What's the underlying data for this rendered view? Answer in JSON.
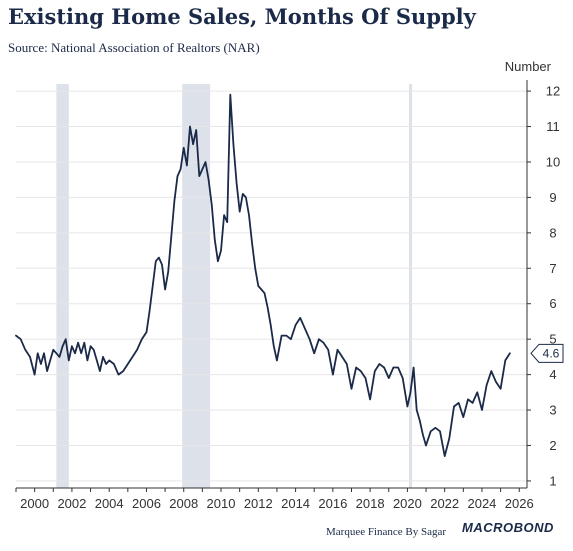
{
  "header": {
    "title": "Existing Home Sales, Months Of Supply",
    "subtitle": "Source: National Association of Realtors (NAR)"
  },
  "footer": {
    "credit": "Marquee Finance By Sagar",
    "brand": "MACROBOND"
  },
  "colors": {
    "line": "#1b2a48",
    "recession": "#dde1ea",
    "grid": "#e6e6e6",
    "axis": "#333333"
  },
  "chart_data": {
    "type": "line",
    "title": "Existing Home Sales, Months Of Supply",
    "subtitle": "Source: National Association of Realtors (NAR)",
    "ylabel": "Number",
    "y_axis_side": "right",
    "xlim": [
      "1999-01",
      "2026-06"
    ],
    "ylim": [
      0.8,
      12.2
    ],
    "x_ticks": [
      "2000",
      "2002",
      "2004",
      "2006",
      "2008",
      "2010",
      "2012",
      "2014",
      "2016",
      "2018",
      "2020",
      "2022",
      "2024",
      "2026"
    ],
    "y_ticks": [
      1,
      2,
      3,
      4,
      5,
      6,
      7,
      8,
      9,
      10,
      11,
      12
    ],
    "grid": "horizontal",
    "last_value_label": "4.6",
    "recession_bands": [
      {
        "start": "2001-03",
        "end": "2001-11"
      },
      {
        "start": "2007-12",
        "end": "2009-06"
      },
      {
        "start": "2020-02",
        "end": "2020-04"
      }
    ],
    "series": [
      {
        "x": [
          "1999-01",
          "1999-04",
          "1999-07",
          "1999-10",
          "2000-01",
          "2000-03",
          "2000-05",
          "2000-07",
          "2000-09",
          "2000-11",
          "2001-01",
          "2001-03",
          "2001-05",
          "2001-07",
          "2001-09",
          "2001-11",
          "2002-01",
          "2002-03",
          "2002-05",
          "2002-07",
          "2002-09",
          "2002-11",
          "2003-01",
          "2003-03",
          "2003-05",
          "2003-07",
          "2003-09",
          "2003-11",
          "2004-01",
          "2004-04",
          "2004-07",
          "2004-10",
          "2005-01",
          "2005-04",
          "2005-07",
          "2005-10",
          "2006-01",
          "2006-03",
          "2006-05",
          "2006-07",
          "2006-09",
          "2006-11",
          "2007-01",
          "2007-03",
          "2007-05",
          "2007-07",
          "2007-09",
          "2007-11",
          "2008-01",
          "2008-03",
          "2008-05",
          "2008-07",
          "2008-09",
          "2008-11",
          "2009-01",
          "2009-03",
          "2009-05",
          "2009-07",
          "2009-09",
          "2009-11",
          "2010-01",
          "2010-03",
          "2010-05",
          "2010-07",
          "2010-09",
          "2010-11",
          "2011-01",
          "2011-03",
          "2011-05",
          "2011-07",
          "2011-09",
          "2011-11",
          "2012-01",
          "2012-03",
          "2012-05",
          "2012-07",
          "2012-09",
          "2012-11",
          "2013-01",
          "2013-04",
          "2013-07",
          "2013-10",
          "2014-01",
          "2014-04",
          "2014-07",
          "2014-10",
          "2015-01",
          "2015-04",
          "2015-07",
          "2015-10",
          "2016-01",
          "2016-04",
          "2016-07",
          "2016-10",
          "2017-01",
          "2017-04",
          "2017-07",
          "2017-10",
          "2018-01",
          "2018-04",
          "2018-07",
          "2018-10",
          "2019-01",
          "2019-04",
          "2019-07",
          "2019-10",
          "2020-01",
          "2020-03",
          "2020-05",
          "2020-07",
          "2020-09",
          "2020-11",
          "2021-01",
          "2021-04",
          "2021-07",
          "2021-10",
          "2022-01",
          "2022-04",
          "2022-07",
          "2022-10",
          "2023-01",
          "2023-04",
          "2023-07",
          "2023-10",
          "2024-01",
          "2024-04",
          "2024-07",
          "2024-10",
          "2025-01",
          "2025-04",
          "2025-07"
        ],
        "values": [
          5.1,
          5.0,
          4.7,
          4.5,
          4.0,
          4.6,
          4.3,
          4.6,
          4.1,
          4.4,
          4.7,
          4.6,
          4.5,
          4.8,
          5.0,
          4.4,
          4.8,
          4.6,
          4.9,
          4.6,
          4.9,
          4.4,
          4.8,
          4.7,
          4.4,
          4.1,
          4.5,
          4.3,
          4.4,
          4.3,
          4.0,
          4.1,
          4.3,
          4.5,
          4.7,
          5.0,
          5.2,
          5.8,
          6.5,
          7.2,
          7.3,
          7.1,
          6.4,
          6.9,
          7.9,
          8.9,
          9.6,
          9.8,
          10.4,
          9.9,
          11.0,
          10.5,
          10.9,
          9.6,
          9.8,
          10.0,
          9.5,
          8.8,
          7.8,
          7.2,
          7.5,
          8.5,
          8.3,
          11.9,
          10.5,
          9.4,
          8.6,
          9.1,
          9.0,
          8.5,
          7.7,
          7.0,
          6.5,
          6.4,
          6.3,
          5.9,
          5.4,
          4.8,
          4.4,
          5.1,
          5.1,
          5.0,
          5.4,
          5.6,
          5.3,
          5.0,
          4.6,
          5.0,
          4.9,
          4.7,
          4.0,
          4.7,
          4.5,
          4.3,
          3.6,
          4.2,
          4.1,
          3.9,
          3.3,
          4.1,
          4.3,
          4.2,
          3.9,
          4.2,
          4.2,
          3.9,
          3.1,
          3.5,
          4.2,
          3.0,
          2.7,
          2.3,
          2.0,
          2.4,
          2.5,
          2.4,
          1.7,
          2.2,
          3.1,
          3.2,
          2.8,
          3.3,
          3.2,
          3.5,
          3.0,
          3.7,
          4.1,
          3.8,
          3.6,
          4.4,
          4.6
        ]
      }
    ]
  }
}
